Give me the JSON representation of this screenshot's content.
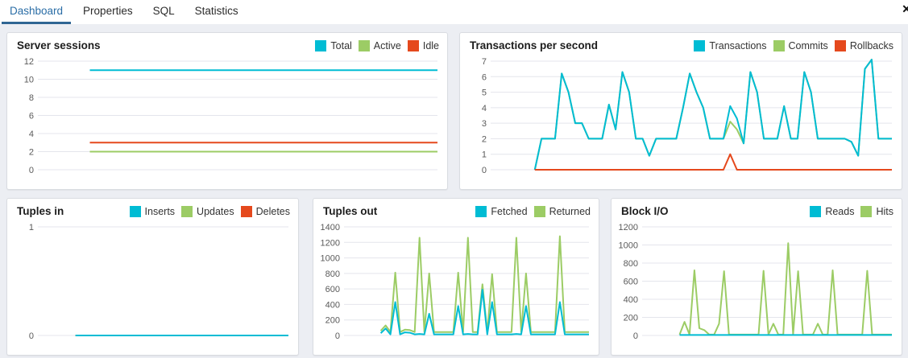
{
  "tabs": {
    "items": [
      {
        "label": "Dashboard",
        "active": true
      },
      {
        "label": "Properties",
        "active": false
      },
      {
        "label": "SQL",
        "active": false
      },
      {
        "label": "Statistics",
        "active": false
      }
    ],
    "close_icon": "✕"
  },
  "colors": {
    "cyan": "#00BCD4",
    "green": "#9CCC65",
    "red": "#E5491D",
    "tab_active_text": "#2a6da6",
    "tab_active_underline": "#2f6593",
    "gridline": "#e4e5ec",
    "axis_text": "#5a5a5a",
    "page_background": "#eceef3"
  },
  "chart_data": [
    {
      "key": "server-sessions",
      "type": "line",
      "title": "Server sessions",
      "yticks": [
        0,
        2,
        4,
        6,
        8,
        10,
        12
      ],
      "ylim": [
        0,
        12
      ],
      "grid": true,
      "legend_position": "top-right",
      "start_frac": 0.13,
      "draw": [
        2,
        1,
        0
      ],
      "series": [
        {
          "name": "Total",
          "color": "#00BCD4",
          "values": [
            11,
            11
          ]
        },
        {
          "name": "Active",
          "color": "#9CCC65",
          "values": [
            2,
            2
          ]
        },
        {
          "name": "Idle",
          "color": "#E5491D",
          "values": [
            3,
            3
          ]
        }
      ]
    },
    {
      "key": "transactions-per-second",
      "type": "line",
      "title": "Transactions per second",
      "yticks": [
        0,
        1,
        2,
        3,
        4,
        5,
        6,
        7
      ],
      "ylim": [
        0,
        7
      ],
      "grid": true,
      "legend_position": "top-right",
      "start_frac": 0.11,
      "draw": [
        1,
        0,
        2
      ],
      "series": [
        {
          "name": "Transactions",
          "color": "#00BCD4",
          "values": [
            0,
            2,
            2,
            2,
            6.2,
            5,
            3,
            3,
            2,
            2,
            2,
            4.2,
            2.6,
            6.3,
            5,
            2,
            2,
            0.9,
            2,
            2,
            2,
            2,
            4,
            6.2,
            5,
            4,
            2,
            2,
            2,
            4.1,
            3.3,
            1.7,
            6.3,
            5,
            2,
            2,
            2,
            4.1,
            2,
            2,
            6.3,
            5,
            2,
            2,
            2,
            2,
            2,
            1.8,
            0.9,
            6.5,
            7.1,
            2,
            2,
            2
          ]
        },
        {
          "name": "Commits",
          "color": "#9CCC65",
          "values": [
            0,
            2,
            2,
            2,
            6.2,
            5,
            3,
            3,
            2,
            2,
            2,
            4.2,
            2.6,
            6.3,
            5,
            2,
            2,
            0.9,
            2,
            2,
            2,
            2,
            4,
            6.2,
            5,
            4,
            2,
            2,
            2,
            3.1,
            2.6,
            1.7,
            6.3,
            5,
            2,
            2,
            2,
            4.1,
            2,
            2,
            6.3,
            5,
            2,
            2,
            2,
            2,
            2,
            1.8,
            0.9,
            6.5,
            7.1,
            2,
            2,
            2
          ]
        },
        {
          "name": "Rollbacks",
          "color": "#E5491D",
          "values": [
            0,
            0,
            0,
            0,
            0,
            0,
            0,
            0,
            0,
            0,
            0,
            0,
            0,
            0,
            0,
            0,
            0,
            0,
            0,
            0,
            0,
            0,
            0,
            0,
            0,
            0,
            0,
            0,
            0,
            1,
            0,
            0,
            0,
            0,
            0,
            0,
            0,
            0,
            0,
            0,
            0,
            0,
            0,
            0,
            0,
            0,
            0,
            0,
            0,
            0,
            0,
            0,
            0,
            0
          ]
        }
      ]
    },
    {
      "key": "tuples-in",
      "type": "line",
      "title": "Tuples in",
      "yticks": [
        0,
        1
      ],
      "ylim": [
        0,
        1
      ],
      "grid": true,
      "legend_position": "top-right",
      "start_frac": 0.15,
      "draw": [
        2,
        1,
        0
      ],
      "series": [
        {
          "name": "Inserts",
          "color": "#00BCD4",
          "values": [
            0,
            0
          ]
        },
        {
          "name": "Updates",
          "color": "#9CCC65",
          "values": [
            0,
            0
          ]
        },
        {
          "name": "Deletes",
          "color": "#E5491D",
          "values": [
            0,
            0
          ]
        }
      ]
    },
    {
      "key": "tuples-out",
      "type": "line",
      "title": "Tuples out",
      "yticks": [
        0,
        200,
        400,
        600,
        800,
        1000,
        1200,
        1400
      ],
      "ylim": [
        0,
        1400
      ],
      "grid": true,
      "legend_position": "top-right",
      "start_frac": 0.15,
      "draw": [
        1,
        0
      ],
      "series": [
        {
          "name": "Fetched",
          "color": "#00BCD4",
          "values": [
            30,
            90,
            15,
            430,
            15,
            40,
            35,
            15,
            20,
            15,
            280,
            15,
            15,
            15,
            15,
            15,
            380,
            15,
            20,
            15,
            15,
            590,
            15,
            430,
            15,
            15,
            15,
            15,
            20,
            15,
            380,
            15,
            15,
            15,
            15,
            15,
            15,
            430,
            15,
            15,
            15,
            15,
            15,
            15
          ]
        },
        {
          "name": "Returned",
          "color": "#9CCC65",
          "values": [
            60,
            130,
            45,
            810,
            45,
            75,
            70,
            45,
            1260,
            45,
            800,
            45,
            45,
            45,
            45,
            45,
            810,
            45,
            1260,
            45,
            45,
            660,
            45,
            790,
            45,
            45,
            45,
            45,
            1260,
            45,
            800,
            45,
            45,
            45,
            45,
            45,
            45,
            1280,
            45,
            45,
            45,
            45,
            45,
            45
          ]
        }
      ]
    },
    {
      "key": "block-io",
      "type": "line",
      "title": "Block I/O",
      "yticks": [
        0,
        200,
        400,
        600,
        800,
        1000,
        1200
      ],
      "ylim": [
        0,
        1200
      ],
      "grid": true,
      "legend_position": "top-right",
      "start_frac": 0.15,
      "draw": [
        1,
        0
      ],
      "series": [
        {
          "name": "Reads",
          "color": "#00BCD4",
          "values": [
            5,
            5
          ]
        },
        {
          "name": "Hits",
          "color": "#9CCC65",
          "values": [
            10,
            150,
            10,
            720,
            80,
            60,
            10,
            10,
            130,
            710,
            10,
            10,
            10,
            10,
            10,
            10,
            10,
            715,
            10,
            130,
            10,
            10,
            1020,
            10,
            710,
            10,
            10,
            10,
            130,
            10,
            10,
            720,
            10,
            10,
            10,
            10,
            10,
            10,
            715,
            10,
            10,
            10,
            10,
            10
          ]
        }
      ]
    }
  ]
}
